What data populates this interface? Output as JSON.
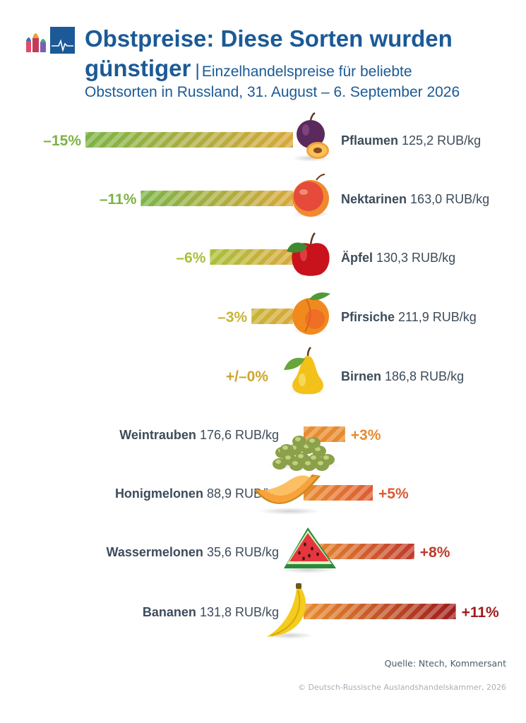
{
  "header": {
    "title": "Obstpreise: Diese Sorten wurden günstiger",
    "separator": "|",
    "subtitle_part1": "Einzelhandelspreise für beliebte",
    "subtitle_part2": "Obstsorten in Russland, 31. August – 6. September 2026"
  },
  "footer": {
    "source": "Quelle: Ntech, Kommersant",
    "copyright": "© Deutsch-Russische Auslandshandelskammer, 2026"
  },
  "chart_data": {
    "type": "bar",
    "unit": "RUB/kg",
    "items": [
      {
        "name": "Pflaumen",
        "price": "125,2 RUB/kg",
        "change": -15,
        "label": "–15%",
        "color": "#7cb346",
        "icon": "plum-icon"
      },
      {
        "name": "Nektarinen",
        "price": "163,0 RUB/kg",
        "change": -11,
        "label": "–11%",
        "color": "#7cb346",
        "icon": "nectarine-icon"
      },
      {
        "name": "Äpfel",
        "price": "130,3 RUB/kg",
        "change": -6,
        "label": "–6%",
        "color": "#a9bf3a",
        "icon": "apple-icon"
      },
      {
        "name": "Pfirsiche",
        "price": "211,9 RUB/kg",
        "change": -3,
        "label": "–3%",
        "color": "#c8b334",
        "icon": "peach-icon"
      },
      {
        "name": "Birnen",
        "price": "186,8 RUB/kg",
        "change": 0,
        "label": "+/–0%",
        "color": "#cda62e",
        "icon": "pear-icon"
      },
      {
        "name": "Weintrauben",
        "price": "176,6 RUB/kg",
        "change": 3,
        "label": "+3%",
        "color": "#e68a2e",
        "icon": "grapes-icon"
      },
      {
        "name": "Honigmelonen",
        "price": "88,9 RUB/kg",
        "change": 5,
        "label": "+5%",
        "color": "#dd5a33",
        "icon": "melon-icon"
      },
      {
        "name": "Wassermelonen",
        "price": "35,6 RUB/kg",
        "change": 8,
        "label": "+8%",
        "color": "#c0392b",
        "icon": "watermelon-icon"
      },
      {
        "name": "Bananen",
        "price": "131,8 RUB/kg",
        "change": 11,
        "label": "+11%",
        "color": "#9e1b1b",
        "icon": "banana-icon"
      }
    ]
  }
}
